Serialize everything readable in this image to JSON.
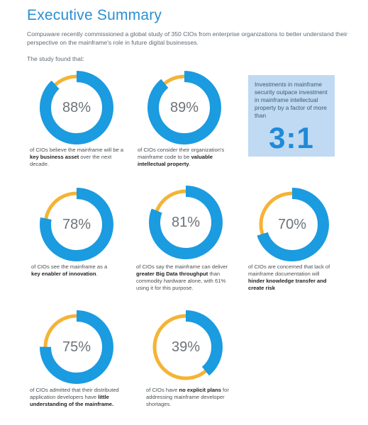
{
  "header": {
    "title": "Executive Summary",
    "intro": "Compuware recently commissioned a global study of 350 CIOs from enterprise organizations to better understand their perspective on the mainframe's role in future digital businesses.",
    "study_found": "The study found that:"
  },
  "colors": {
    "accent_blue": "#1b9be0",
    "accent_gold": "#f5b335",
    "callout_bg": "#bfdaf2"
  },
  "stats": [
    {
      "value": "88%",
      "percent": 88,
      "pre": "of CIOs believe the mainframe will be a ",
      "bold": "key business asset",
      "post": " over the next decade."
    },
    {
      "value": "89%",
      "percent": 89,
      "pre": "of CIOs consider their organization's mainframe code to be ",
      "bold": "valuable intellectual property",
      "post": "."
    },
    {
      "value": "78%",
      "percent": 78,
      "pre": "of CIOs see the mainframe as a ",
      "bold": "key enabler of innovation",
      "post": "."
    },
    {
      "value": "81%",
      "percent": 81,
      "pre": "of CIOs say the mainframe can deliver ",
      "bold": "greater Big Data throughput",
      "post": " than commodity hardware alone, with 61% using it for this purpose."
    },
    {
      "value": "70%",
      "percent": 70,
      "pre": "of CIOs are concerned that lack of mainframe documentation will ",
      "bold": "hinder knowledge transfer and create risk",
      "post": ""
    },
    {
      "value": "75%",
      "percent": 75,
      "pre": "of CIOs admitted that their distributed application developers have ",
      "bold": "little understanding of the mainframe.",
      "post": ""
    },
    {
      "value": "39%",
      "percent": 39,
      "pre": "of CIOs have ",
      "bold": "no explicit plans",
      "post": " for addressing mainframe developer shortages."
    }
  ],
  "callout": {
    "text": "Investments in mainframe security outpace investment in mainframe intellectual property by a factor of more than",
    "ratio": "3:1"
  }
}
